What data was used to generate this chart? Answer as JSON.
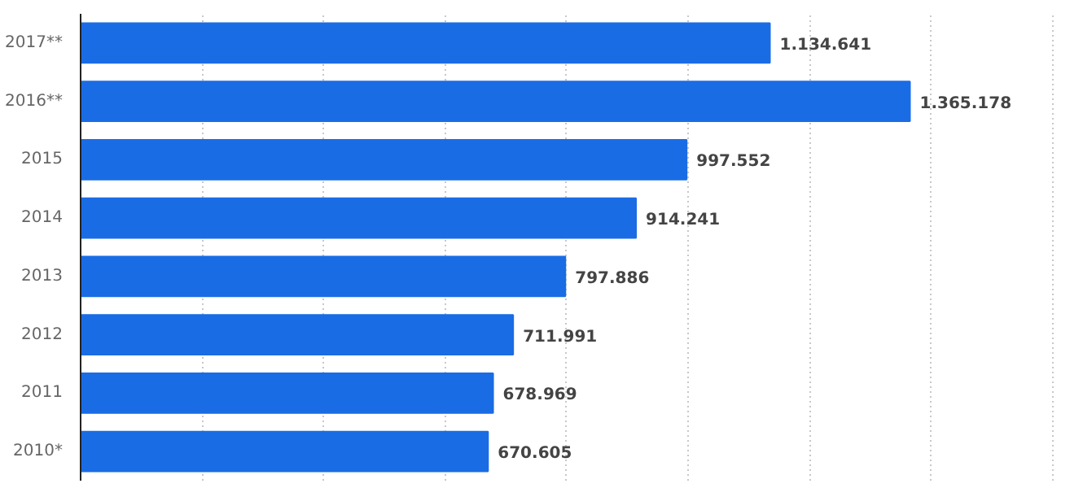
{
  "chart_data": {
    "type": "bar",
    "orientation": "horizontal",
    "categories": [
      "2017**",
      "2016**",
      "2015",
      "2014",
      "2013",
      "2012",
      "2011",
      "2010*"
    ],
    "values": [
      1134641,
      1365178,
      997552,
      914241,
      797886,
      711991,
      678969,
      670605
    ],
    "value_labels": [
      "1.134.641",
      "1.365.178",
      "997.552",
      "914.241",
      "797.886",
      "711.991",
      "678.969",
      "670.605"
    ],
    "color": "#1a6ce4",
    "tick_labels": "y",
    "grid": "x"
  }
}
